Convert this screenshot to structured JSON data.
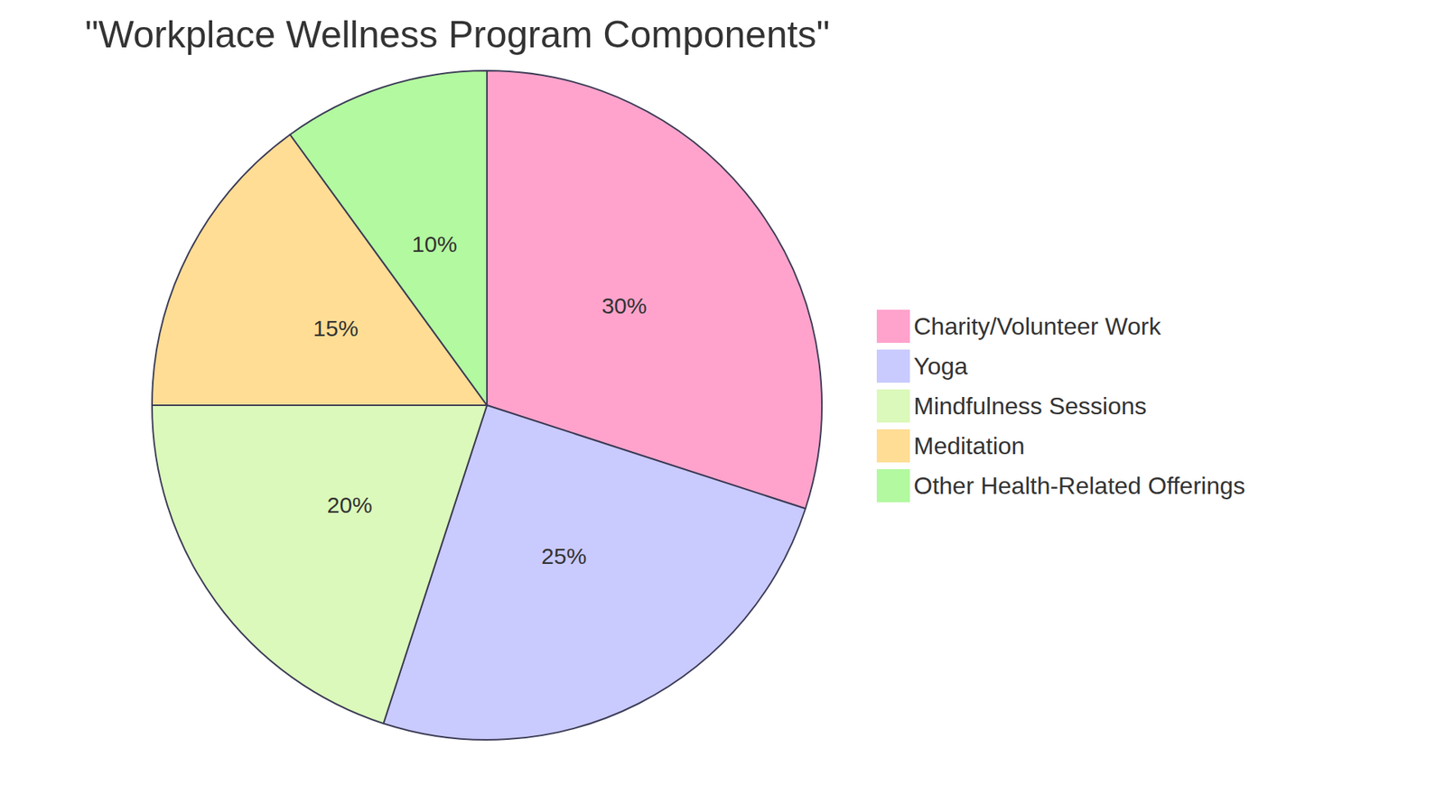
{
  "chart_data": {
    "type": "pie",
    "title": "\"Workplace Wellness Program Components\"",
    "categories": [
      "Charity/Volunteer Work",
      "Yoga",
      "Mindfulness Sessions",
      "Meditation",
      "Other Health-Related Offerings"
    ],
    "values": [
      30,
      25,
      20,
      15,
      10
    ],
    "value_labels": [
      "30%",
      "25%",
      "20%",
      "15%",
      "10%"
    ],
    "colors": [
      "#ffa3cc",
      "#c9cafe",
      "#dbf9ba",
      "#ffdd94",
      "#b3f9a0"
    ],
    "data_labels": true,
    "legend": "right"
  }
}
